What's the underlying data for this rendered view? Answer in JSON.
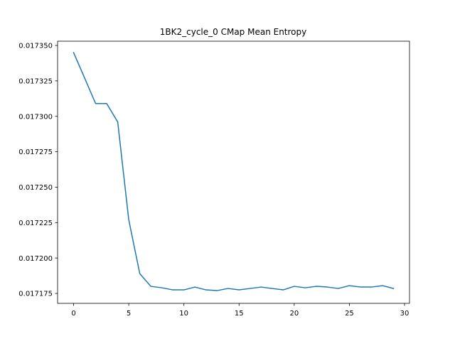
{
  "chart_data": {
    "type": "line",
    "title": "1BK2_cycle_0 CMap Mean Entropy",
    "xlabel": "",
    "ylabel": "",
    "xlim": [
      -1.45,
      30.45
    ],
    "ylim": [
      0.017168,
      0.017353
    ],
    "x_ticks": [
      0,
      5,
      10,
      15,
      20,
      25,
      30
    ],
    "x_tick_labels": [
      "0",
      "5",
      "10",
      "15",
      "20",
      "25",
      "30"
    ],
    "y_ticks": [
      0.017175,
      0.0172,
      0.017225,
      0.01725,
      0.017275,
      0.0173,
      0.017325,
      0.01735
    ],
    "y_tick_labels": [
      "0.017175",
      "0.017200",
      "0.017225",
      "0.017250",
      "0.017275",
      "0.017300",
      "0.017325",
      "0.017350"
    ],
    "grid": false,
    "series": [
      {
        "color": "#1f77b4",
        "x": [
          0,
          1,
          2,
          3,
          4,
          5,
          6,
          7,
          8,
          9,
          10,
          11,
          12,
          13,
          14,
          15,
          16,
          17,
          18,
          19,
          20,
          21,
          22,
          23,
          24,
          25,
          26,
          27,
          28,
          29
        ],
        "y": [
          0.017345,
          0.017327,
          0.017309,
          0.017309,
          0.017296,
          0.017227,
          0.017189,
          0.01718,
          0.017179,
          0.0171775,
          0.0171775,
          0.0171795,
          0.0171775,
          0.017177,
          0.0171785,
          0.0171775,
          0.0171785,
          0.0171795,
          0.0171785,
          0.0171775,
          0.01718,
          0.017179,
          0.01718,
          0.0171795,
          0.0171785,
          0.0171805,
          0.0171795,
          0.0171795,
          0.0171805,
          0.0171785
        ]
      }
    ]
  }
}
